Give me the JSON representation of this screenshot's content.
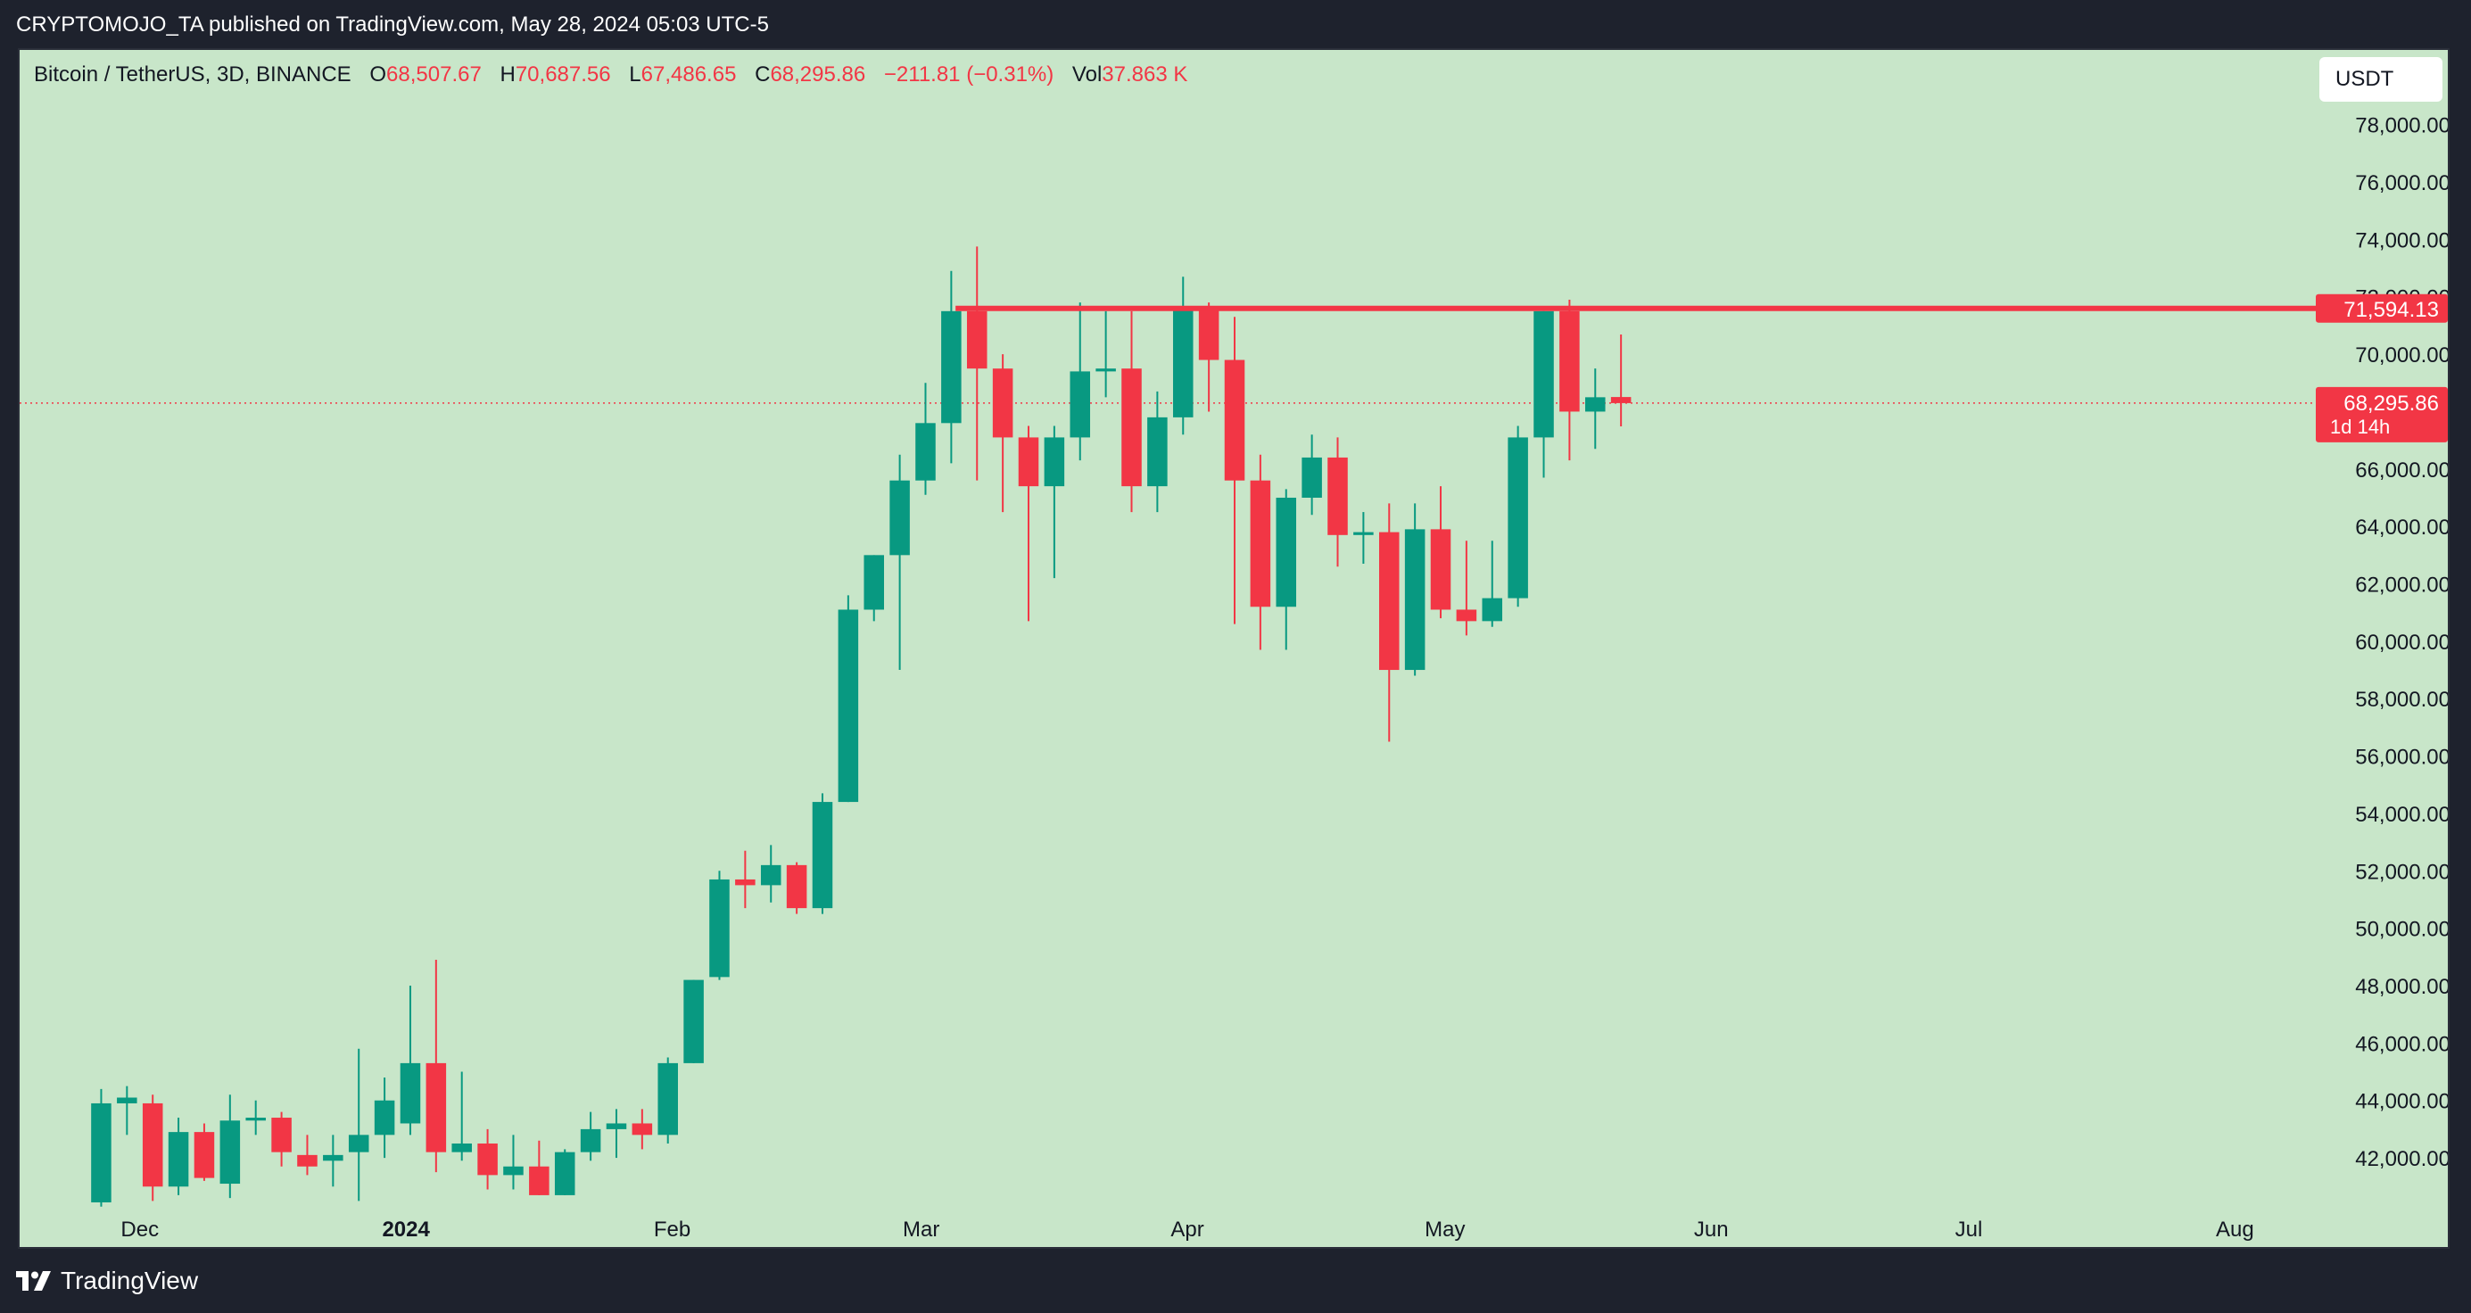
{
  "header": {
    "published_text": "CRYPTOMOJO_TA published on TradingView.com, May 28, 2024 05:03 UTC-5"
  },
  "legend": {
    "symbol": "Bitcoin / TetherUS, 3D, BINANCE",
    "open_label": "O",
    "open_value": "68,507.67",
    "high_label": "H",
    "high_value": "70,687.56",
    "low_label": "L",
    "low_value": "67,486.65",
    "close_label": "C",
    "close_value": "68,295.86",
    "change_value": "−211.81 (−0.31%)",
    "vol_label": "Vol",
    "vol_value": "37.863 K"
  },
  "currency_button": "USDT",
  "footer": {
    "brand": "TradingView",
    "logo_icon": "tradingview-logo-icon"
  },
  "colors": {
    "background": "#c8e6c9",
    "up": "#089981",
    "down": "#f23645",
    "frame": "#1e222d"
  },
  "chart_data": {
    "type": "candlestick",
    "title": "Bitcoin / TetherUS, 3D, BINANCE",
    "y_ticks": [
      "42,000.00",
      "44,000.00",
      "46,000.00",
      "48,000.00",
      "50,000.00",
      "52,000.00",
      "54,000.00",
      "56,000.00",
      "58,000.00",
      "60,000.00",
      "62,000.00",
      "64,000.00",
      "66,000.00",
      "68,000.00",
      "70,000.00",
      "72,000.00",
      "74,000.00",
      "76,000.00",
      "78,000.00"
    ],
    "y_tick_values": [
      42000,
      44000,
      46000,
      48000,
      50000,
      52000,
      54000,
      56000,
      58000,
      60000,
      62000,
      64000,
      66000,
      68000,
      70000,
      72000,
      74000,
      76000,
      78000
    ],
    "ylim": [
      40200,
      80600
    ],
    "x_labels": [
      {
        "text": "Dec",
        "date": "2023-12-01",
        "bold": false
      },
      {
        "text": "2024",
        "date": "2024-01-01",
        "bold": true
      },
      {
        "text": "Feb",
        "date": "2024-02-01",
        "bold": false
      },
      {
        "text": "Mar",
        "date": "2024-03-01",
        "bold": false
      },
      {
        "text": "Apr",
        "date": "2024-04-01",
        "bold": false
      },
      {
        "text": "May",
        "date": "2024-05-01",
        "bold": false
      },
      {
        "text": "Jun",
        "date": "2024-06-01",
        "bold": false
      },
      {
        "text": "Jul",
        "date": "2024-07-01",
        "bold": false
      },
      {
        "text": "Aug",
        "date": "2024-08-01",
        "bold": false
      }
    ],
    "xlim": [
      "2023-11-17",
      "2024-08-10"
    ],
    "candles": [
      {
        "date": "2023-11-25",
        "open": 40450,
        "high": 44400,
        "low": 40300,
        "close": 43900
      },
      {
        "date": "2023-11-28",
        "open": 43900,
        "high": 44500,
        "low": 42800,
        "close": 44100
      },
      {
        "date": "2023-12-01",
        "open": 43900,
        "high": 44200,
        "low": 40500,
        "close": 41000
      },
      {
        "date": "2023-12-04",
        "open": 41000,
        "high": 43400,
        "low": 40700,
        "close": 42900
      },
      {
        "date": "2023-12-07",
        "open": 42900,
        "high": 43200,
        "low": 41200,
        "close": 41300
      },
      {
        "date": "2023-12-10",
        "open": 41100,
        "high": 44200,
        "low": 40600,
        "close": 43300
      },
      {
        "date": "2023-12-13",
        "open": 43300,
        "high": 44000,
        "low": 42800,
        "close": 43400
      },
      {
        "date": "2023-12-16",
        "open": 43400,
        "high": 43600,
        "low": 41700,
        "close": 42200
      },
      {
        "date": "2023-12-19",
        "open": 42100,
        "high": 42800,
        "low": 41400,
        "close": 41700
      },
      {
        "date": "2023-12-22",
        "open": 41900,
        "high": 42800,
        "low": 41000,
        "close": 42100
      },
      {
        "date": "2023-12-25",
        "open": 42200,
        "high": 45800,
        "low": 40500,
        "close": 42800
      },
      {
        "date": "2023-12-28",
        "open": 42800,
        "high": 44800,
        "low": 42000,
        "close": 44000
      },
      {
        "date": "2023-12-31",
        "open": 43200,
        "high": 48000,
        "low": 42800,
        "close": 45300
      },
      {
        "date": "2024-01-03",
        "open": 45300,
        "high": 48900,
        "low": 41500,
        "close": 42200
      },
      {
        "date": "2024-01-06",
        "open": 42200,
        "high": 45000,
        "low": 41900,
        "close": 42500
      },
      {
        "date": "2024-01-09",
        "open": 42500,
        "high": 43000,
        "low": 40900,
        "close": 41400
      },
      {
        "date": "2024-01-12",
        "open": 41400,
        "high": 42800,
        "low": 40900,
        "close": 41700
      },
      {
        "date": "2024-01-15",
        "open": 41700,
        "high": 42600,
        "low": 40700,
        "close": 40700
      },
      {
        "date": "2024-01-18",
        "open": 40700,
        "high": 42300,
        "low": 40700,
        "close": 42200
      },
      {
        "date": "2024-01-21",
        "open": 42200,
        "high": 43600,
        "low": 41900,
        "close": 43000
      },
      {
        "date": "2024-01-24",
        "open": 43000,
        "high": 43700,
        "low": 42000,
        "close": 43200
      },
      {
        "date": "2024-01-27",
        "open": 43200,
        "high": 43700,
        "low": 42300,
        "close": 42800
      },
      {
        "date": "2024-01-30",
        "open": 42800,
        "high": 45500,
        "low": 42500,
        "close": 45300
      },
      {
        "date": "2024-02-02",
        "open": 45300,
        "high": 48200,
        "low": 45300,
        "close": 48200
      },
      {
        "date": "2024-02-05",
        "open": 48300,
        "high": 52000,
        "low": 48200,
        "close": 51700
      },
      {
        "date": "2024-02-08",
        "open": 51700,
        "high": 52700,
        "low": 50700,
        "close": 51500
      },
      {
        "date": "2024-02-11",
        "open": 51500,
        "high": 52900,
        "low": 50900,
        "close": 52200
      },
      {
        "date": "2024-02-14",
        "open": 52200,
        "high": 52300,
        "low": 50500,
        "close": 50700
      },
      {
        "date": "2024-02-17",
        "open": 50700,
        "high": 54700,
        "low": 50500,
        "close": 54400
      },
      {
        "date": "2024-02-20",
        "open": 54400,
        "high": 61600,
        "low": 54400,
        "close": 61100
      },
      {
        "date": "2024-02-23",
        "open": 61100,
        "high": 63000,
        "low": 60700,
        "close": 63000
      },
      {
        "date": "2024-02-26",
        "open": 63000,
        "high": 66500,
        "low": 59000,
        "close": 65600
      },
      {
        "date": "2024-02-29",
        "open": 65600,
        "high": 69000,
        "low": 65100,
        "close": 67600
      },
      {
        "date": "2024-03-03",
        "open": 67600,
        "high": 72900,
        "low": 66200,
        "close": 71500
      },
      {
        "date": "2024-03-06",
        "open": 71500,
        "high": 73750,
        "low": 65600,
        "close": 69500
      },
      {
        "date": "2024-03-09",
        "open": 69500,
        "high": 70000,
        "low": 64500,
        "close": 67100
      },
      {
        "date": "2024-03-12",
        "open": 67100,
        "high": 67500,
        "low": 60700,
        "close": 65400
      },
      {
        "date": "2024-03-15",
        "open": 65400,
        "high": 67500,
        "low": 62200,
        "close": 67100
      },
      {
        "date": "2024-03-18",
        "open": 67100,
        "high": 71800,
        "low": 66300,
        "close": 69400
      },
      {
        "date": "2024-03-21",
        "open": 69400,
        "high": 71500,
        "low": 68500,
        "close": 69500
      },
      {
        "date": "2024-03-24",
        "open": 69500,
        "high": 71500,
        "low": 64500,
        "close": 65400
      },
      {
        "date": "2024-03-27",
        "open": 65400,
        "high": 68700,
        "low": 64500,
        "close": 67800
      },
      {
        "date": "2024-03-30",
        "open": 67800,
        "high": 72700,
        "low": 67200,
        "close": 71600
      },
      {
        "date": "2024-04-02",
        "open": 71600,
        "high": 71800,
        "low": 68000,
        "close": 69800
      },
      {
        "date": "2024-04-05",
        "open": 69800,
        "high": 71300,
        "low": 60600,
        "close": 65600
      },
      {
        "date": "2024-04-08",
        "open": 65600,
        "high": 66500,
        "low": 59700,
        "close": 61200
      },
      {
        "date": "2024-04-11",
        "open": 61200,
        "high": 65300,
        "low": 59700,
        "close": 65000
      },
      {
        "date": "2024-04-14",
        "open": 65000,
        "high": 67200,
        "low": 64400,
        "close": 66400
      },
      {
        "date": "2024-04-17",
        "open": 66400,
        "high": 67100,
        "low": 62600,
        "close": 63700
      },
      {
        "date": "2024-04-20",
        "open": 63700,
        "high": 64500,
        "low": 62700,
        "close": 63800
      },
      {
        "date": "2024-04-23",
        "open": 63800,
        "high": 64800,
        "low": 56500,
        "close": 59000
      },
      {
        "date": "2024-04-26",
        "open": 59000,
        "high": 64800,
        "low": 58800,
        "close": 63900
      },
      {
        "date": "2024-04-29",
        "open": 63900,
        "high": 65400,
        "low": 60800,
        "close": 61100
      },
      {
        "date": "2024-05-02",
        "open": 61100,
        "high": 63500,
        "low": 60200,
        "close": 60700
      },
      {
        "date": "2024-05-05",
        "open": 60700,
        "high": 63500,
        "low": 60500,
        "close": 61500
      },
      {
        "date": "2024-05-08",
        "open": 61500,
        "high": 67500,
        "low": 61200,
        "close": 67100
      },
      {
        "date": "2024-05-11",
        "open": 67100,
        "high": 71500,
        "low": 65700,
        "close": 71500
      },
      {
        "date": "2024-05-14",
        "open": 71500,
        "high": 71900,
        "low": 66300,
        "close": 68000
      },
      {
        "date": "2024-05-17",
        "open": 68000,
        "high": 69500,
        "low": 66700,
        "close": 68500
      },
      {
        "date": "2024-05-20",
        "open": 68508,
        "high": 70688,
        "low": 67487,
        "close": 68296
      }
    ],
    "resistance": {
      "value": 71594.13,
      "label": "71,594.13",
      "start_date": "2024-03-05"
    },
    "last_price": {
      "value": 68295.86,
      "label": "68,295.86",
      "countdown": "1d 14h"
    }
  }
}
